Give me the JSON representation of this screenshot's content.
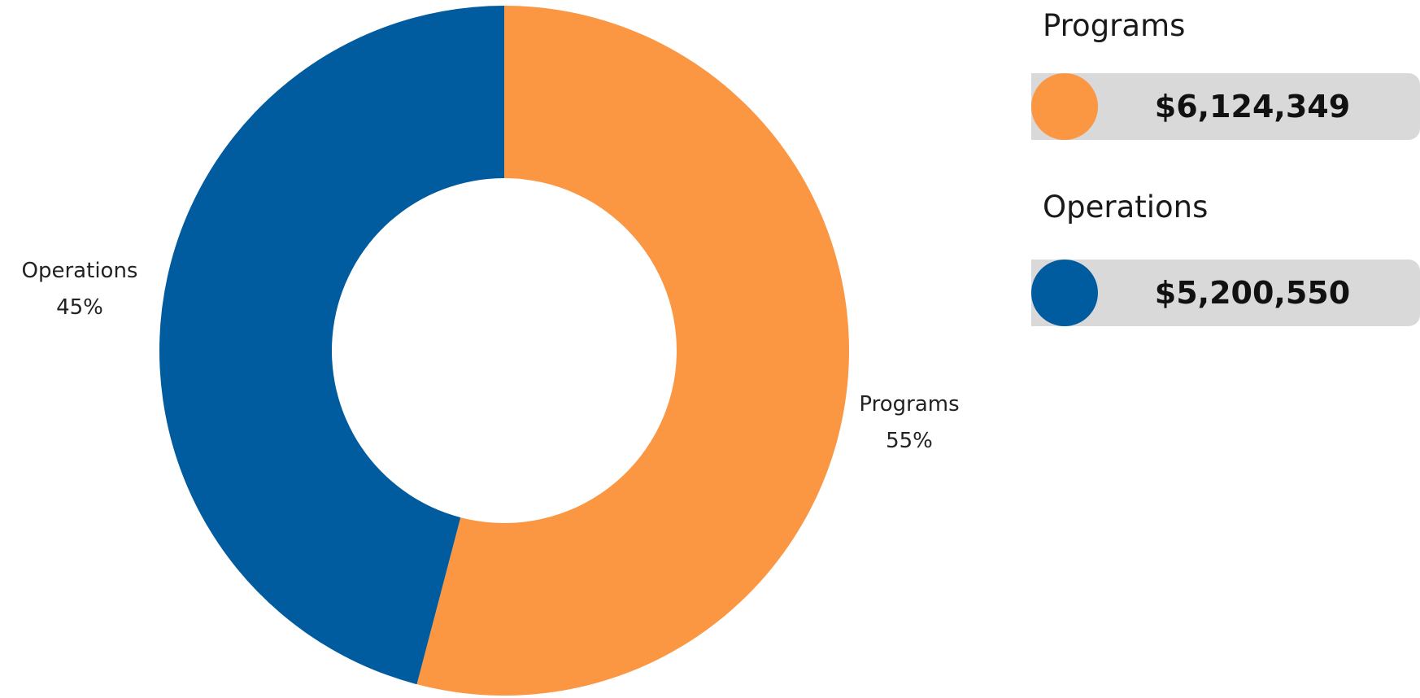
{
  "chart_data": {
    "type": "pie",
    "donut": true,
    "slices": [
      {
        "name": "Programs",
        "percent_label": "55%",
        "value": 6124349,
        "color": "#FB9643"
      },
      {
        "name": "Operations",
        "percent_label": "45%",
        "value": 5200550,
        "color": "#005C9E"
      }
    ]
  },
  "legend": {
    "items": [
      {
        "title": "Programs",
        "amount": "$6,124,349",
        "color": "#FB9643"
      },
      {
        "title": "Operations",
        "amount": "$5,200,550",
        "color": "#005C9E"
      }
    ]
  }
}
